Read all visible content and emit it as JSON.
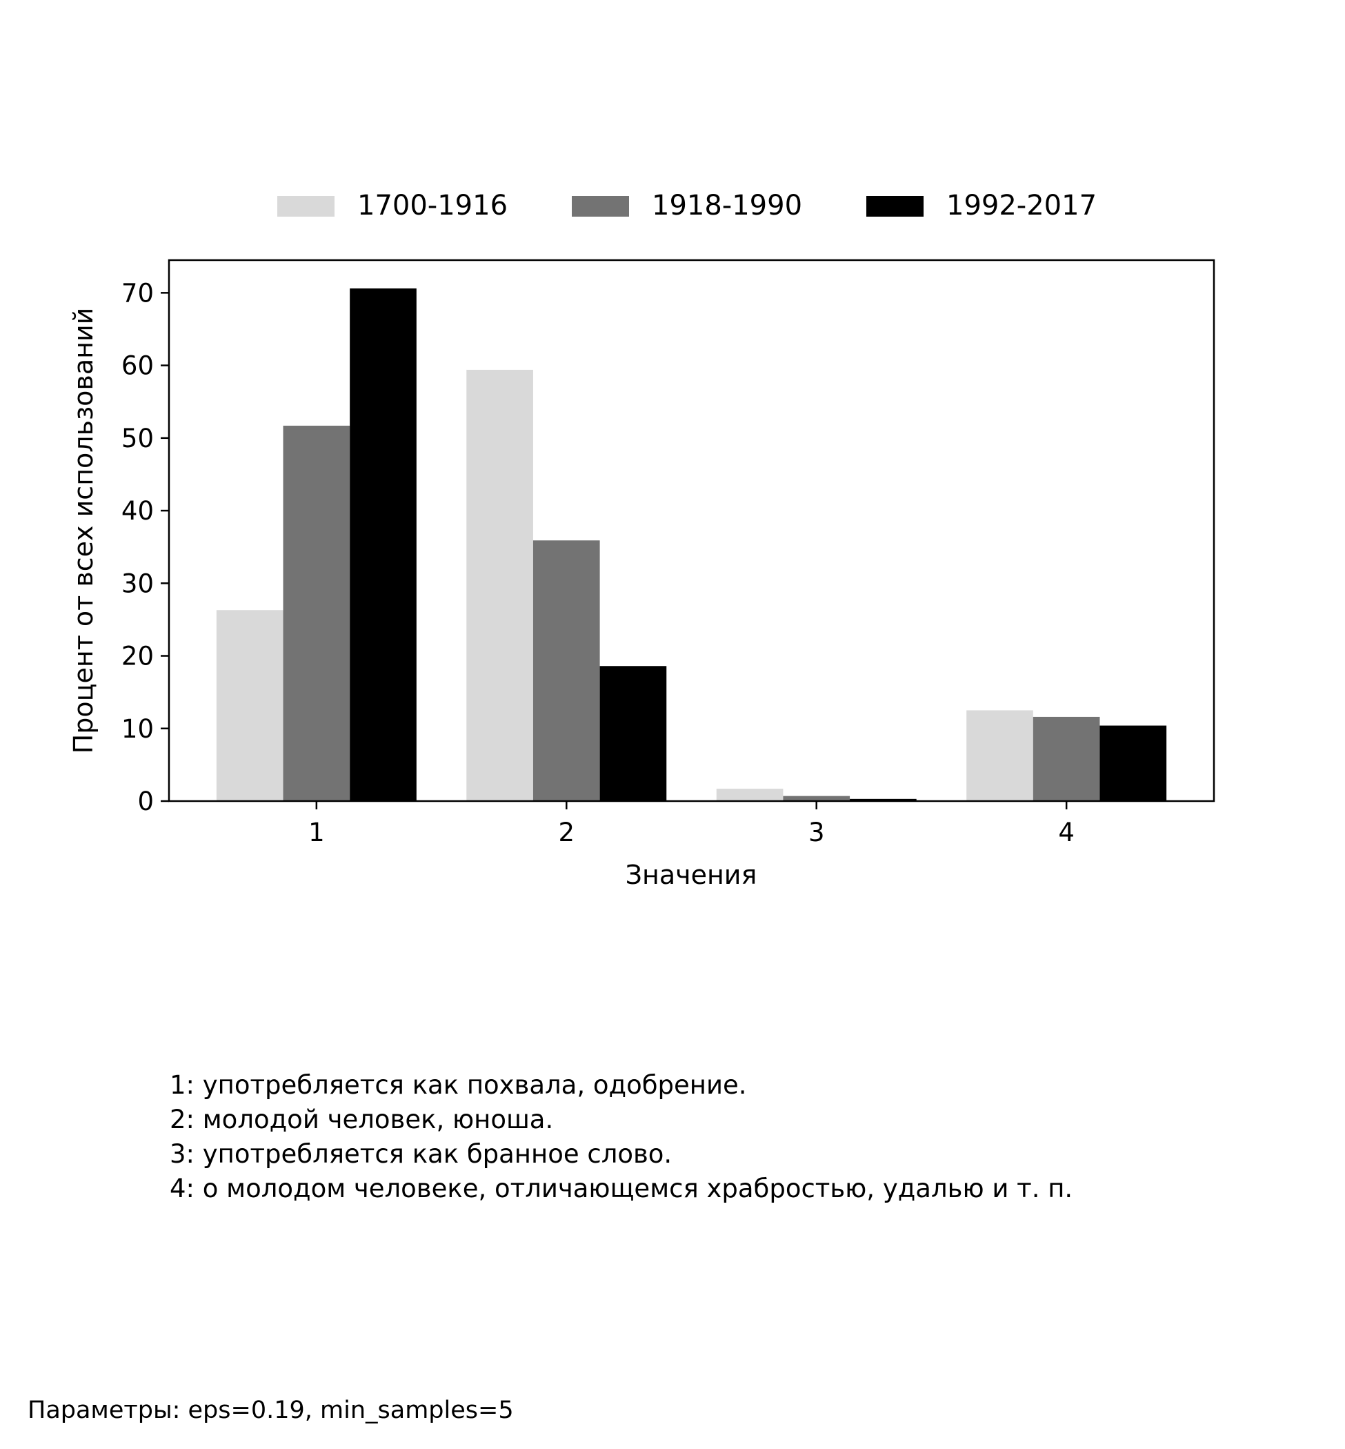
{
  "chart_data": {
    "type": "bar",
    "categories": [
      "1",
      "2",
      "3",
      "4"
    ],
    "series": [
      {
        "name": "1700-1916",
        "color": "#d9d9d9",
        "values": [
          26.3,
          59.4,
          1.7,
          12.5
        ]
      },
      {
        "name": "1918-1990",
        "color": "#737373",
        "values": [
          51.7,
          35.9,
          0.7,
          11.6
        ]
      },
      {
        "name": "1992-2017",
        "color": "#000000",
        "values": [
          70.6,
          18.6,
          0.3,
          10.4
        ]
      }
    ],
    "title": "",
    "xlabel": "Значения",
    "ylabel": "Процент от всех использований",
    "ylim": [
      0,
      74.5
    ],
    "yticks": [
      0,
      10,
      20,
      30,
      40,
      50,
      60,
      70
    ],
    "grid": false,
    "legend_position": "top-center"
  },
  "notes": [
    "1: употребляется как похвала, одобрение.",
    "2: молодой человек, юноша.",
    "3: употребляется как бранное слово.",
    "4: о молодом человеке, отличающемся храбростью, удалью и т. п."
  ],
  "footer": "Параметры: eps=0.19, min_samples=5"
}
